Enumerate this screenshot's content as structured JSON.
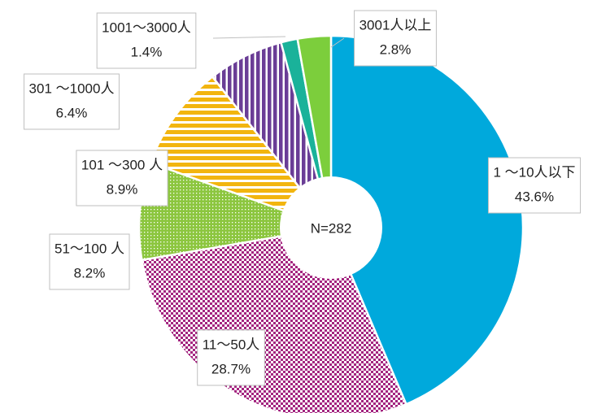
{
  "chart_data": {
    "type": "donut",
    "categories": [
      "1 ～10人以下",
      "11～50人",
      "51～100 人",
      "101 ～300 人",
      "301 ～1000人",
      "1001～3000人",
      "3001人以上"
    ],
    "values": [
      43.6,
      28.7,
      8.2,
      8.9,
      6.4,
      1.4,
      2.8
    ],
    "value_labels": [
      "43.6%",
      "28.7%",
      "8.2%",
      "8.9%",
      "6.4%",
      "1.4%",
      "2.8%"
    ],
    "colors": [
      "#00a9dc",
      "#a3247f",
      "#8cc63f",
      "#f2b50f",
      "#6a3d96",
      "#1ab29a",
      "#7cce3c"
    ],
    "patterns": [
      "solid",
      "checker",
      "dots",
      "hstripes",
      "vstripes",
      "solid",
      "solid"
    ],
    "center_label": "N=282"
  }
}
